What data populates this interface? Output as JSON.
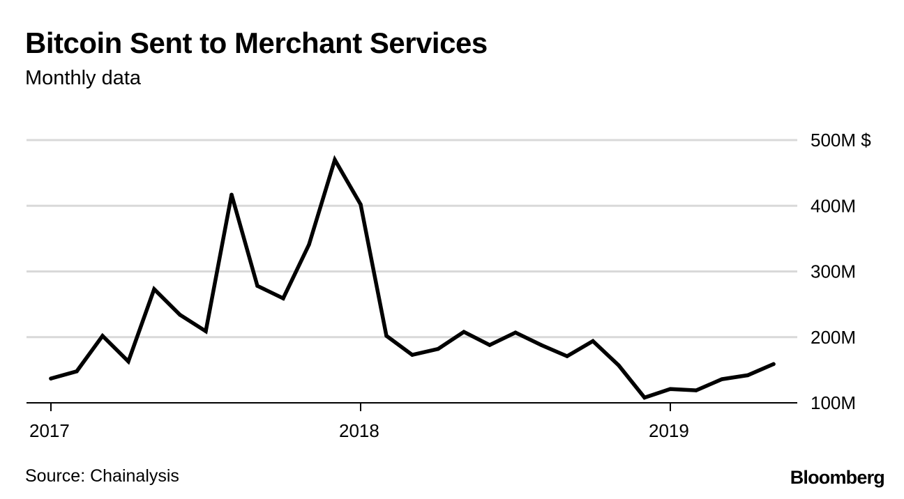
{
  "header": {
    "title": "Bitcoin Sent to Merchant Services",
    "subtitle": "Monthly data"
  },
  "footer": {
    "source": "Source: Chainalysis",
    "brand": "Bloomberg"
  },
  "colors": {
    "line": "#000000",
    "grid": "#d9d9d9",
    "axis": "#000000"
  },
  "chart_data": {
    "type": "line",
    "title": "Bitcoin Sent to Merchant Services",
    "subtitle": "Monthly data",
    "xlabel": "",
    "ylabel": "",
    "ylim": [
      100,
      500
    ],
    "xlim": [
      "2017-01",
      "2019-05"
    ],
    "y_ticks": [
      {
        "value": 500,
        "label": "500M $"
      },
      {
        "value": 400,
        "label": "400M"
      },
      {
        "value": 300,
        "label": "300M"
      },
      {
        "value": 200,
        "label": "200M"
      },
      {
        "value": 100,
        "label": "100M"
      }
    ],
    "x_ticks": [
      {
        "x": "2017-01",
        "label": "2017"
      },
      {
        "x": "2018-01",
        "label": "2018"
      },
      {
        "x": "2019-01",
        "label": "2019"
      }
    ],
    "grid": true,
    "legend": "none",
    "series": [
      {
        "x": [
          "2017-01",
          "2017-02",
          "2017-03",
          "2017-04",
          "2017-05",
          "2017-06",
          "2017-07",
          "2017-08",
          "2017-09",
          "2017-10",
          "2017-11",
          "2017-12",
          "2018-01",
          "2018-02",
          "2018-03",
          "2018-04",
          "2018-05",
          "2018-06",
          "2018-07",
          "2018-08",
          "2018-09",
          "2018-10",
          "2018-11",
          "2018-12",
          "2019-01",
          "2019-02",
          "2019-03",
          "2019-04",
          "2019-05"
        ],
        "values": [
          137,
          148,
          202,
          163,
          273,
          234,
          209,
          417,
          278,
          259,
          341,
          470,
          402,
          202,
          173,
          182,
          208,
          188,
          207,
          188,
          171,
          194,
          157,
          108,
          121,
          119,
          136,
          142,
          159
        ]
      }
    ]
  }
}
